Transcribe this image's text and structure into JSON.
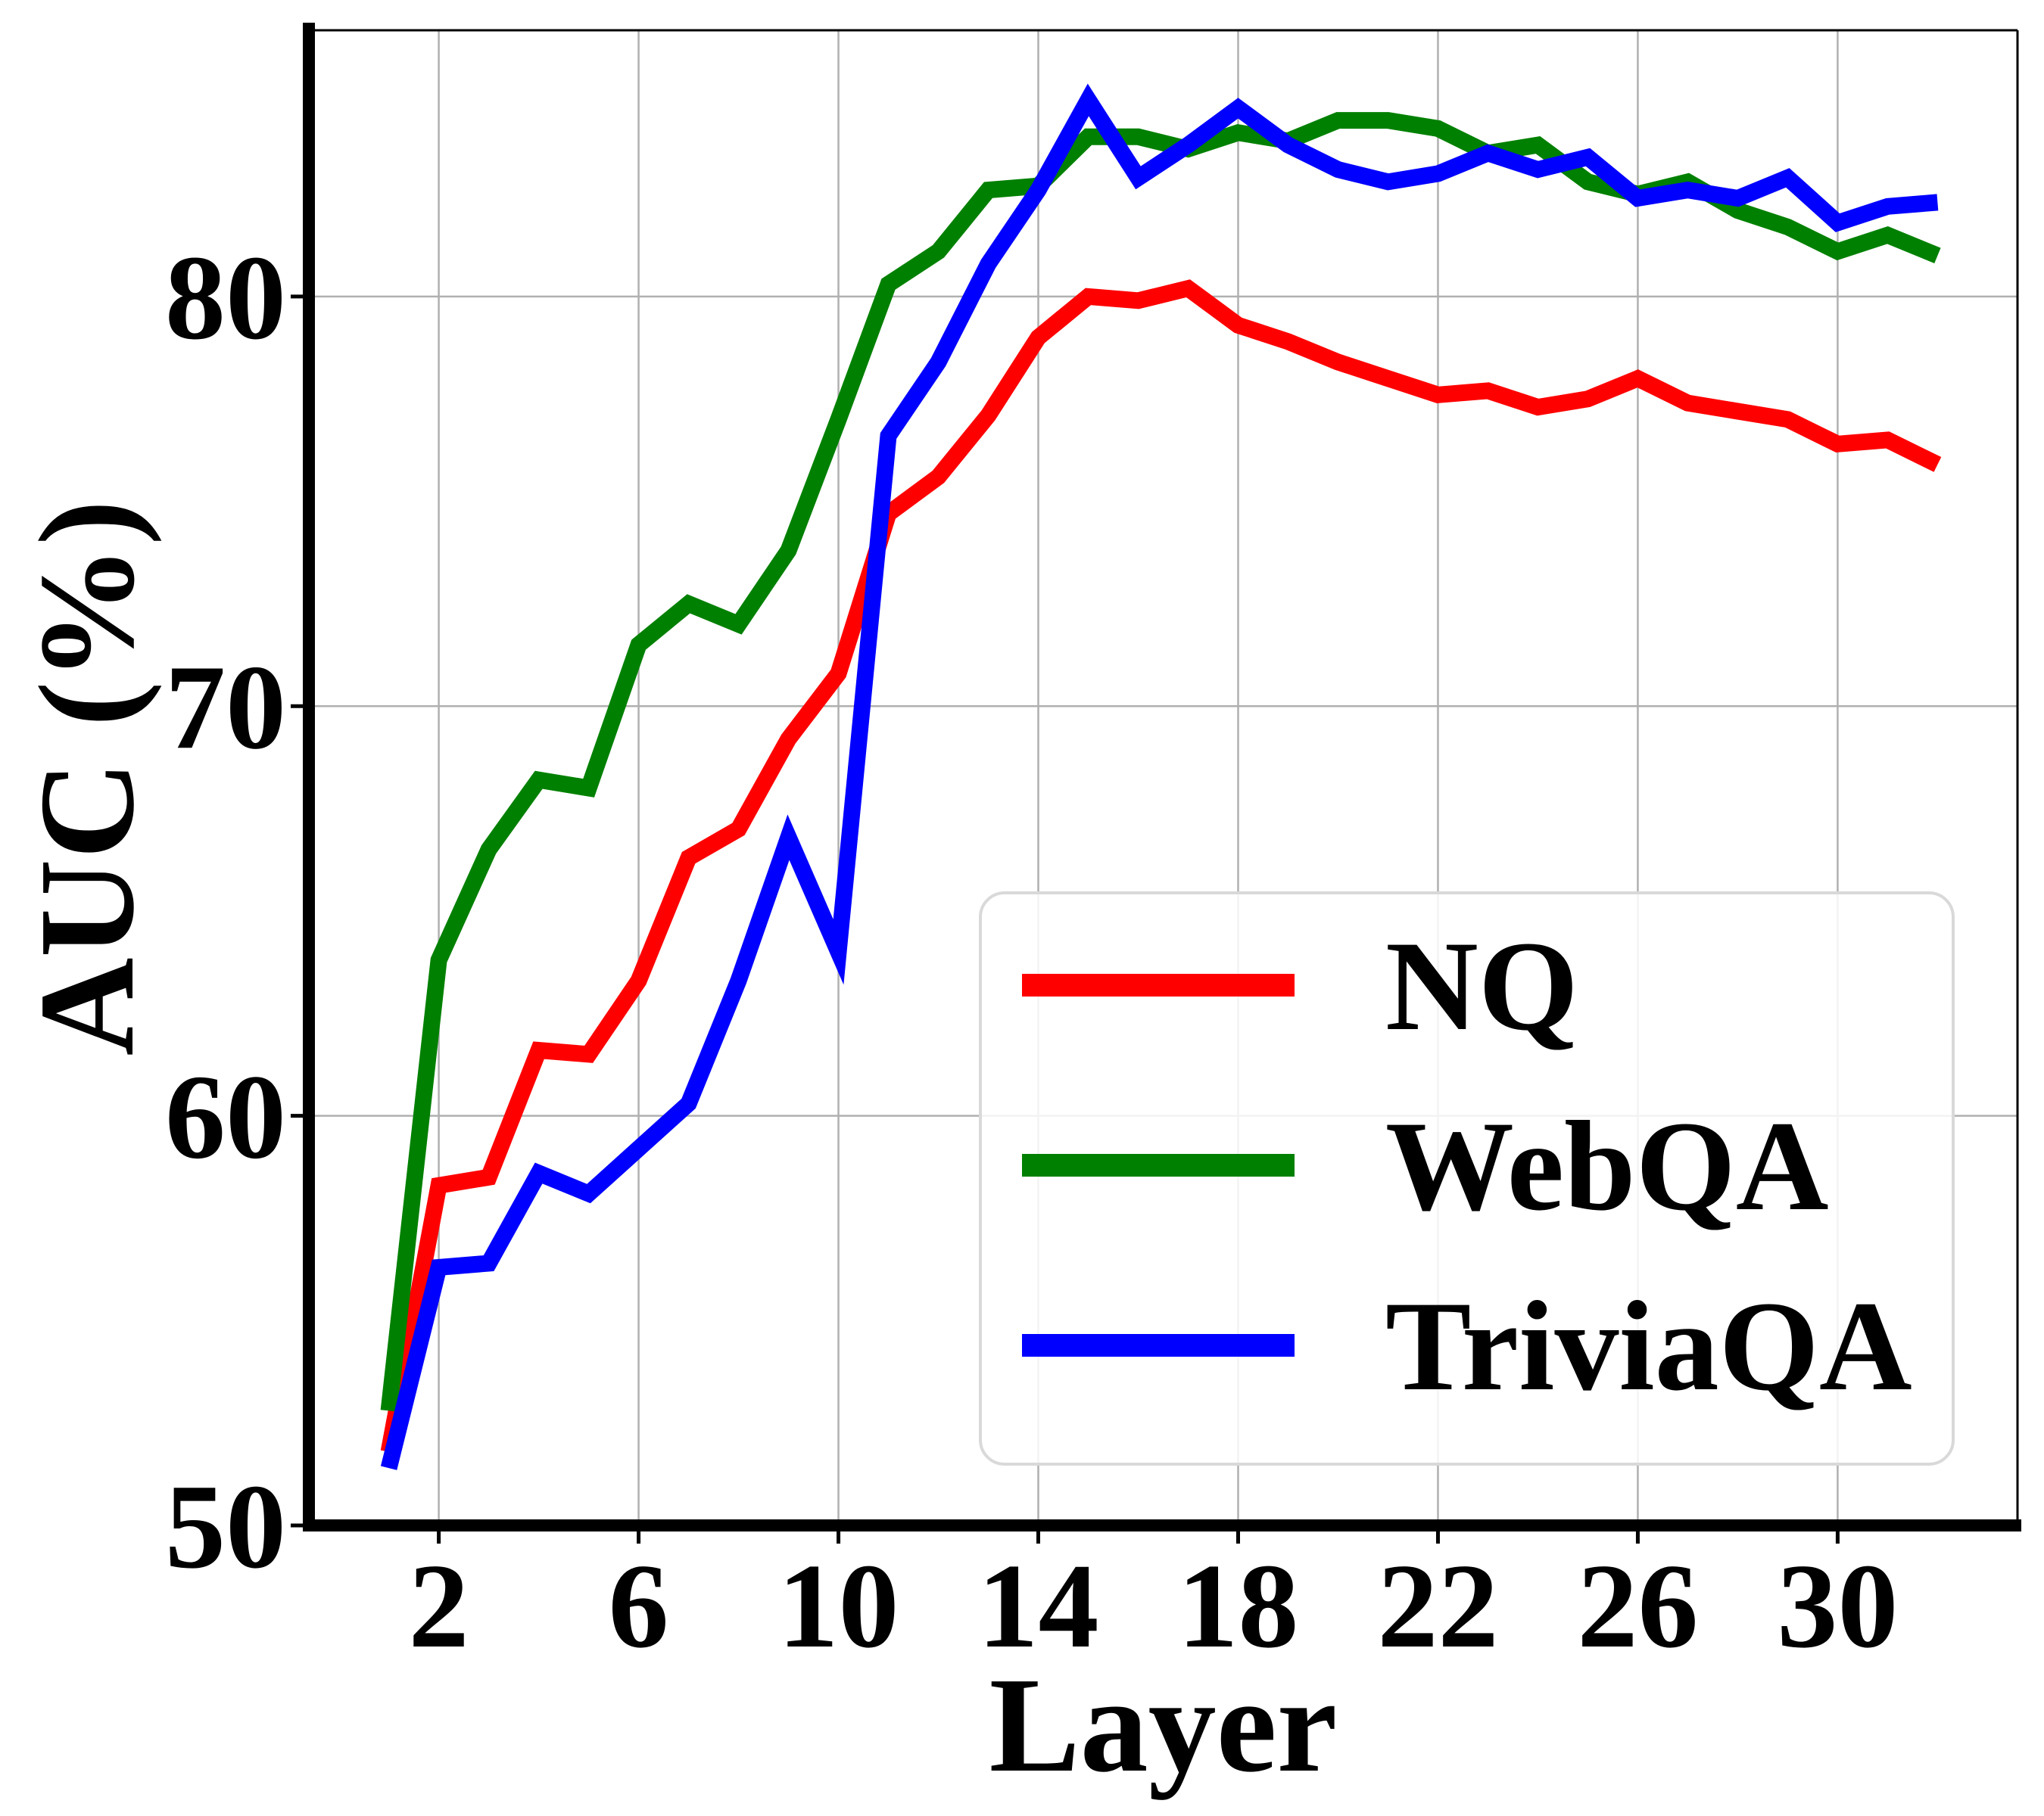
{
  "chart_data": {
    "type": "line",
    "title": "",
    "xlabel": "Layer",
    "ylabel": "AUC (%)",
    "xlim": [
      -0.6,
      33.6
    ],
    "ylim": [
      50,
      86.5
    ],
    "xticks": [
      2,
      6,
      10,
      14,
      18,
      22,
      26,
      30
    ],
    "yticks": [
      50,
      60,
      70,
      80
    ],
    "grid": true,
    "legend_position": "lower-right",
    "x": [
      1,
      2,
      3,
      4,
      5,
      6,
      7,
      8,
      9,
      10,
      11,
      12,
      13,
      14,
      15,
      16,
      17,
      18,
      19,
      20,
      21,
      22,
      23,
      24,
      25,
      26,
      27,
      28,
      29,
      30,
      31,
      32
    ],
    "series": [
      {
        "name": "NQ",
        "color": "#ff0000",
        "values": [
          51.8,
          58.3,
          58.5,
          61.6,
          61.5,
          63.3,
          66.3,
          67.0,
          69.2,
          70.8,
          74.7,
          75.6,
          77.1,
          79.0,
          80.0,
          79.9,
          80.2,
          79.3,
          78.9,
          78.4,
          78.0,
          77.6,
          77.7,
          77.3,
          77.5,
          78.0,
          77.4,
          77.2,
          77.0,
          76.4,
          76.5,
          75.9
        ]
      },
      {
        "name": "WebQA",
        "color": "#008000",
        "values": [
          52.8,
          63.8,
          66.5,
          68.2,
          68.0,
          71.5,
          72.5,
          72.0,
          73.8,
          77.0,
          80.3,
          81.1,
          82.6,
          82.7,
          83.9,
          83.9,
          83.6,
          84.0,
          83.8,
          84.3,
          84.3,
          84.1,
          83.5,
          83.7,
          82.8,
          82.5,
          82.8,
          82.1,
          81.7,
          81.1,
          81.5,
          81.0
        ]
      },
      {
        "name": "TriviaQA",
        "color": "#0000ff",
        "values": [
          51.4,
          56.3,
          56.4,
          58.6,
          58.1,
          59.2,
          60.3,
          63.3,
          66.8,
          64.0,
          76.6,
          78.4,
          80.8,
          82.6,
          84.8,
          82.9,
          83.7,
          84.6,
          83.7,
          83.1,
          82.8,
          83.0,
          83.5,
          83.1,
          83.4,
          82.4,
          82.6,
          82.4,
          82.9,
          81.8,
          82.2,
          82.3
        ]
      }
    ]
  }
}
